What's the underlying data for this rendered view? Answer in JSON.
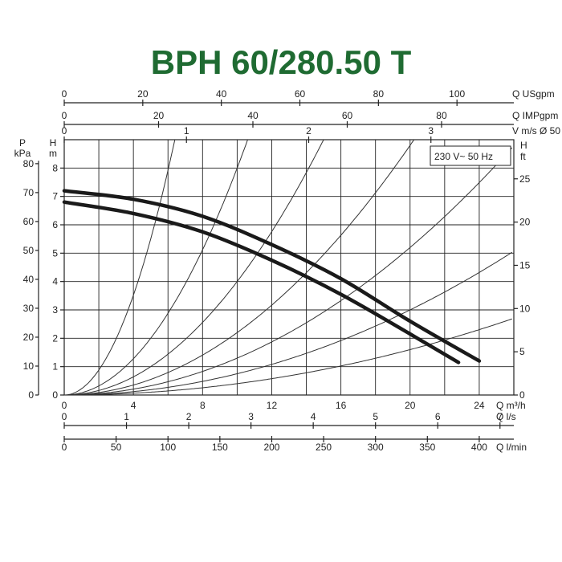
{
  "title": "BPH 60/280.50 T",
  "chart_data": {
    "type": "line",
    "title": "BPH 60/280.50 T",
    "annotation": "230 V~ 50 Hz",
    "grid": true,
    "xlim": [
      0,
      26
    ],
    "ylim": [
      0,
      9
    ],
    "x_unit_label": "Q m³/h",
    "x_ticks": [
      0,
      4,
      8,
      12,
      16,
      20,
      24
    ],
    "y_unit_label": [
      "H",
      "m"
    ],
    "y_ticks": [
      0,
      1,
      2,
      3,
      4,
      5,
      6,
      7,
      8
    ],
    "p_unit_label": [
      "P",
      "kPa"
    ],
    "p_ticks": [
      0,
      10,
      20,
      30,
      40,
      50,
      60,
      70,
      80
    ],
    "ft_unit_label": [
      "H",
      "ft"
    ],
    "ft_ticks": [
      0,
      5,
      10,
      15,
      20,
      25
    ],
    "top_axes": [
      {
        "label": "Q USgpm",
        "ticks": [
          0,
          20,
          40,
          60,
          80,
          100
        ]
      },
      {
        "label": "Q IMPgpm",
        "ticks": [
          0,
          20,
          40,
          60,
          80
        ]
      },
      {
        "label": "V m/s Ø 50",
        "ticks": [
          0,
          1,
          2,
          3
        ]
      }
    ],
    "bottom_axes": [
      {
        "label": "Q l/s",
        "ticks": [
          0,
          1,
          2,
          3,
          4,
          5,
          6,
          7
        ]
      },
      {
        "label": "Q l/min",
        "ticks": [
          0,
          50,
          100,
          150,
          200,
          250,
          300,
          350,
          400
        ]
      }
    ],
    "series": [
      {
        "x": [
          0,
          4,
          8,
          12,
          16,
          20,
          24
        ],
        "values": [
          7.2,
          6.9,
          6.3,
          5.3,
          4.1,
          2.6,
          1.2
        ]
      },
      {
        "x": [
          0,
          4,
          8,
          12,
          16,
          20,
          22.8
        ],
        "values": [
          6.8,
          6.4,
          5.75,
          4.75,
          3.55,
          2.15,
          1.15
        ]
      }
    ],
    "system_curves_k": [
      0.22,
      0.08,
      0.04,
      0.022,
      0.013,
      0.0075,
      0.004
    ]
  }
}
